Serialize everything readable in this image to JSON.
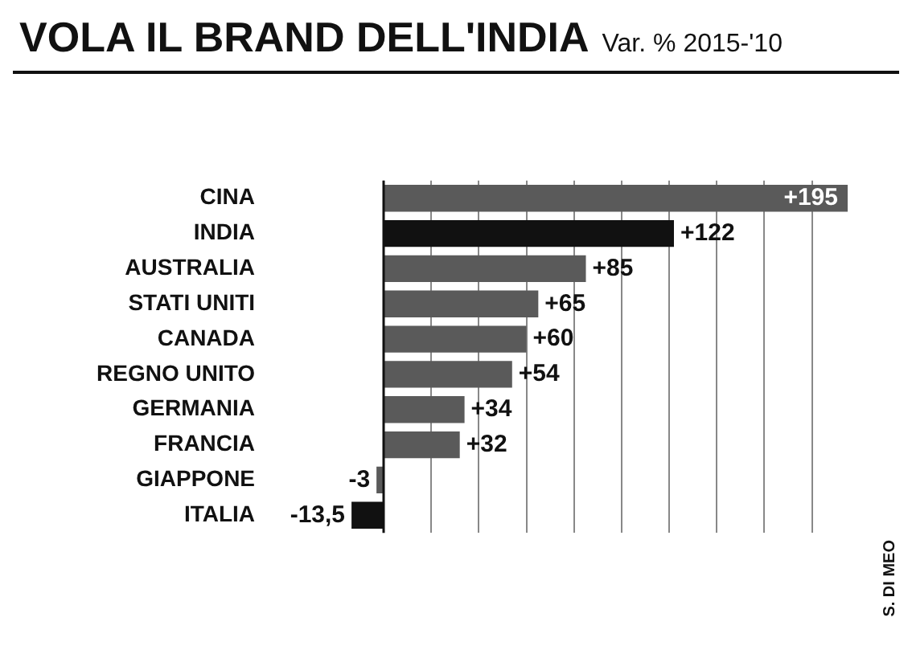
{
  "chart_data": {
    "type": "bar",
    "orientation": "horizontal",
    "title": "VOLA IL BRAND DELL'INDIA",
    "subtitle": "Var. % 2015-'10",
    "categories": [
      "CINA",
      "INDIA",
      "AUSTRALIA",
      "STATI UNITI",
      "CANADA",
      "REGNO UNITO",
      "GERMANIA",
      "FRANCIA",
      "GIAPPONE",
      "ITALIA"
    ],
    "values": [
      195,
      122,
      85,
      65,
      60,
      54,
      34,
      32,
      -3,
      -13.5
    ],
    "colors": [
      "#5a5a5a",
      "#111111",
      "#5a5a5a",
      "#5a5a5a",
      "#5a5a5a",
      "#5a5a5a",
      "#5a5a5a",
      "#5a5a5a",
      "#5a5a5a",
      "#111111"
    ],
    "value_labels": [
      "+195",
      "+122",
      "+85",
      "+65",
      "+60",
      "+54",
      "+34",
      "+32",
      "-3",
      "-13,5"
    ],
    "xticks": [
      {
        "value": 0,
        "label": null
      },
      {
        "value": 20,
        "label": null
      },
      {
        "value": 40,
        "label": null
      },
      {
        "value": 60,
        "label": null
      },
      {
        "value": 80,
        "label": null
      },
      {
        "value": 100,
        "label": null
      },
      {
        "value": 120,
        "label": null
      },
      {
        "value": 140,
        "label": null
      },
      {
        "value": 160,
        "label": null
      },
      {
        "value": 180,
        "label": null
      }
    ],
    "grid": "x",
    "tick_labels": "y",
    "legend": false,
    "annotations": [
      "S. DI MEO"
    ]
  }
}
